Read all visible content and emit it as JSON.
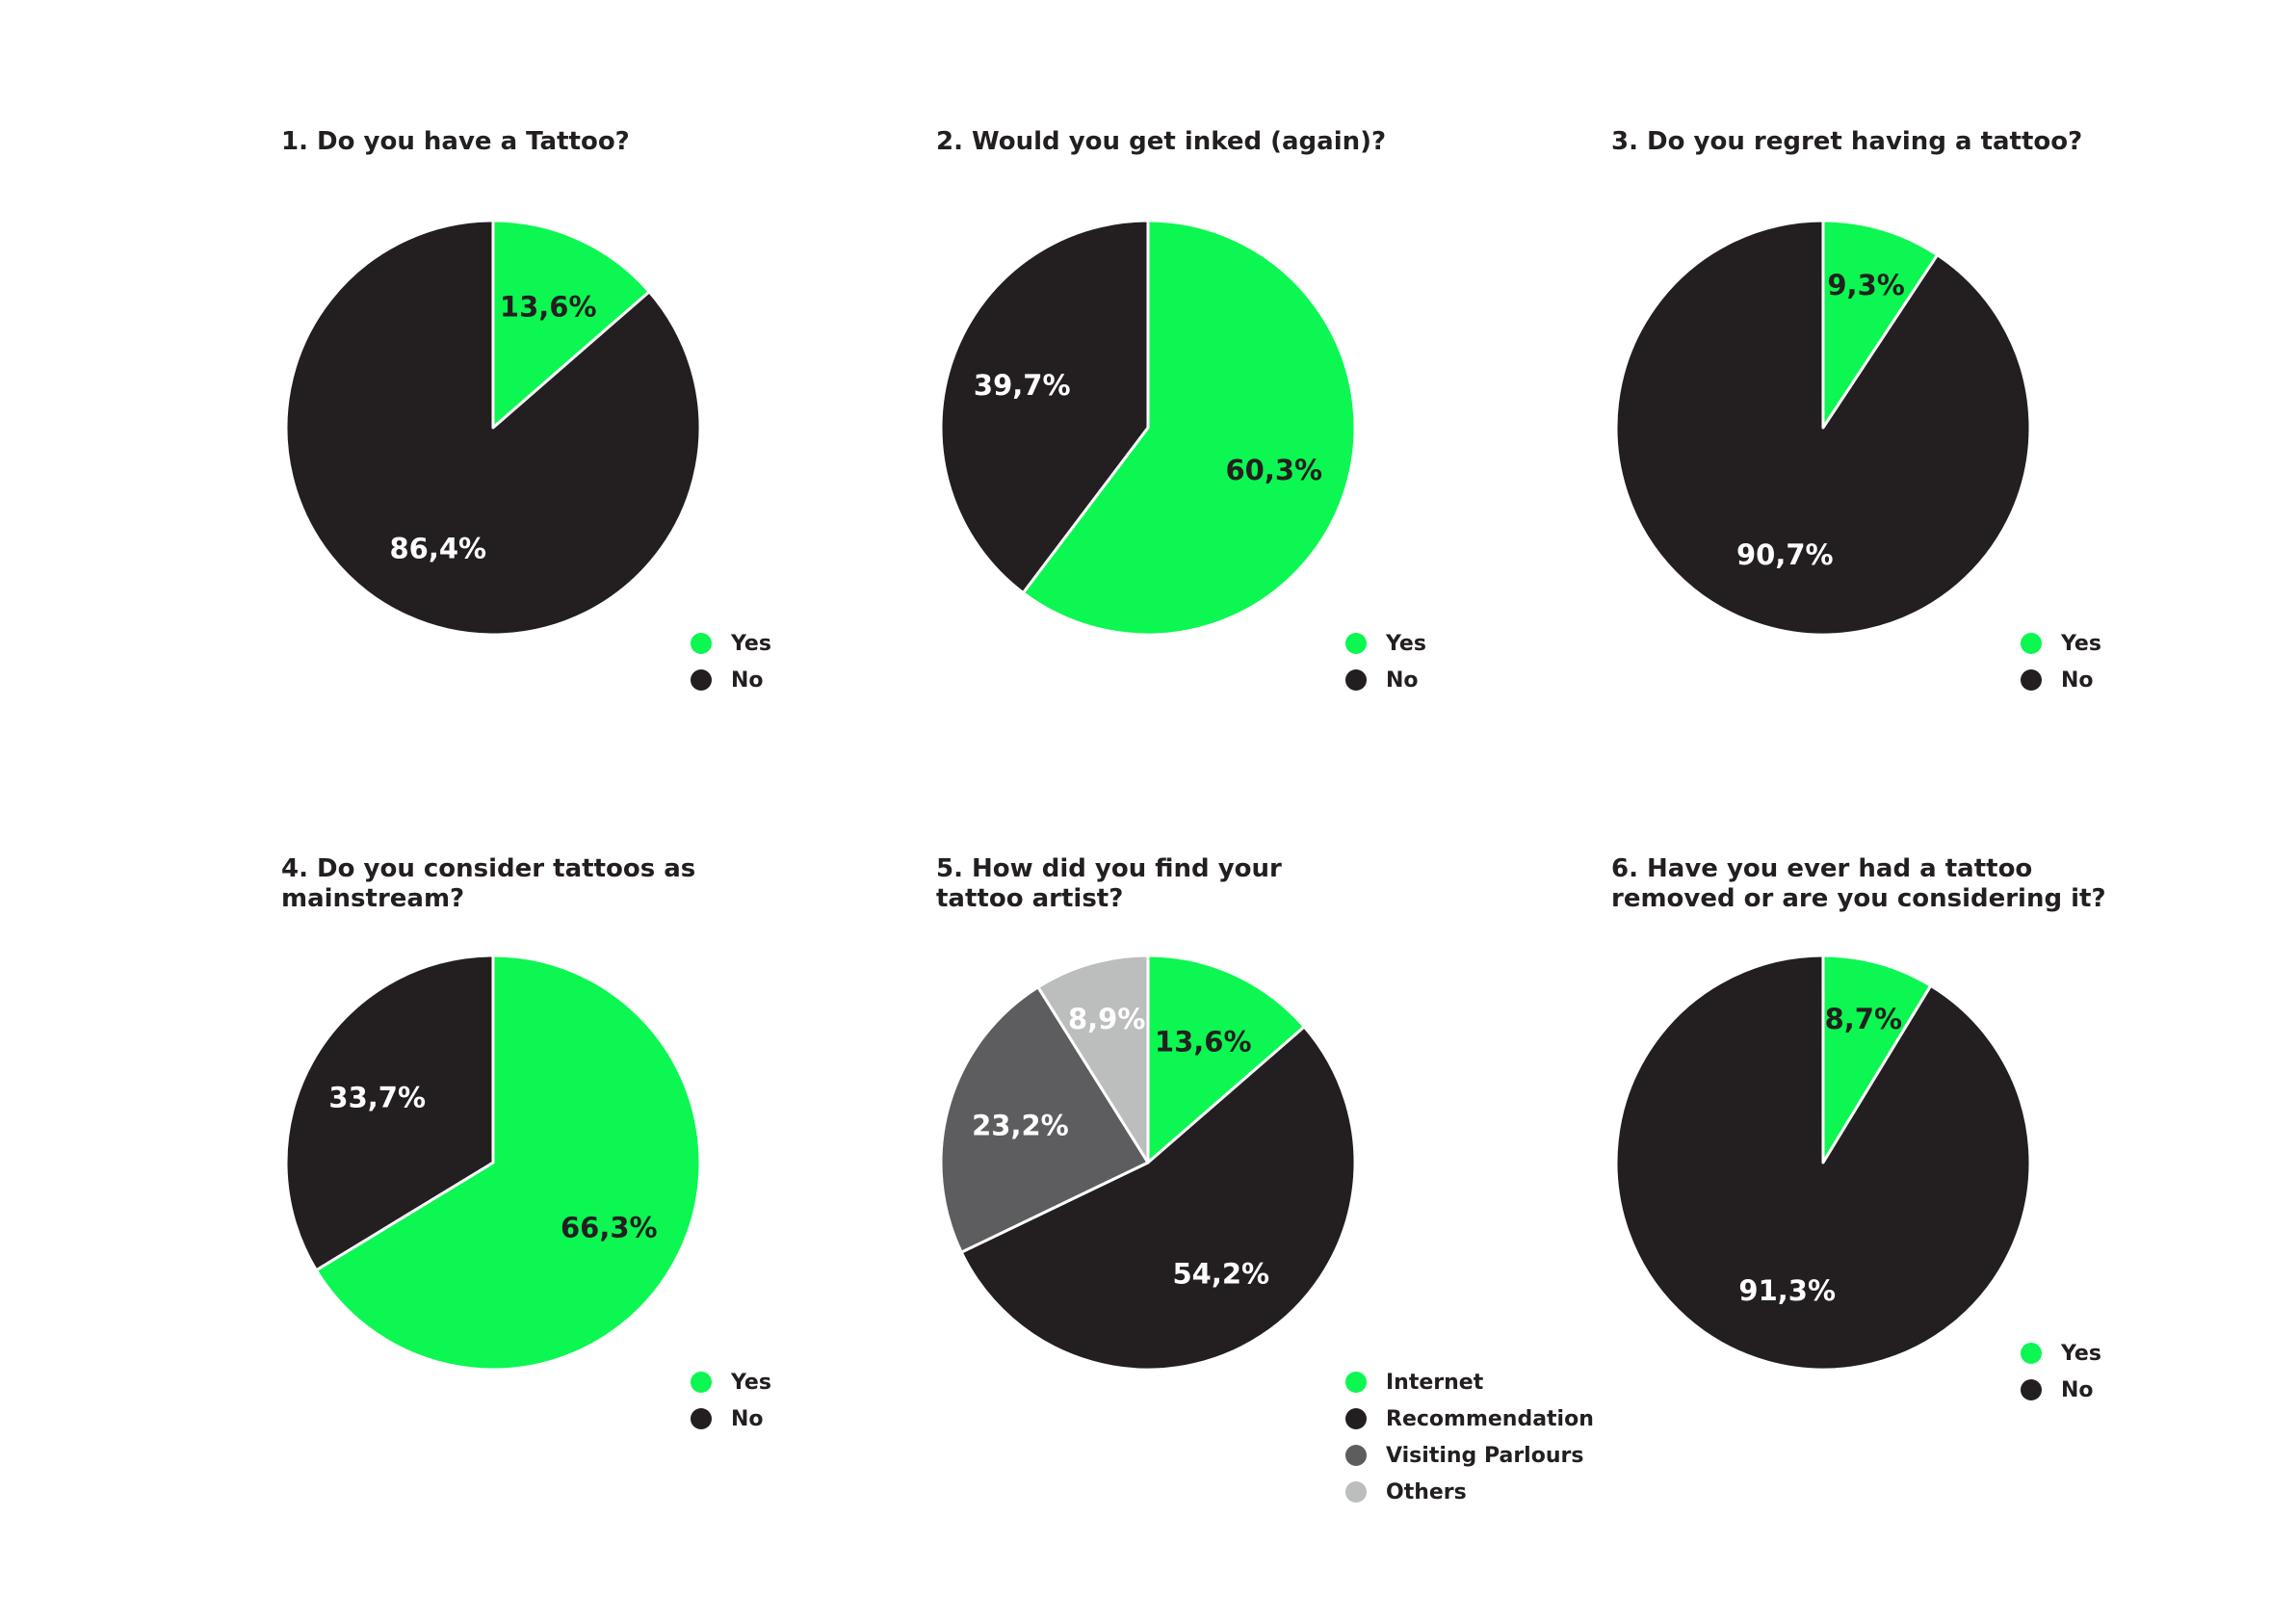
{
  "colors": {
    "green": "#0cf751",
    "dark": "#231f20",
    "gray": "#5d5d5f",
    "lightgray": "#bcbdbd",
    "label_on_light": "#231f20",
    "label_on_dark": "#ffffff"
  },
  "chart_data": [
    {
      "type": "pie",
      "title": "1. Do you have a Tattoo?",
      "slices": [
        {
          "label": "Yes",
          "value": 13.6,
          "display": "13,6%",
          "color": "#0cf751"
        },
        {
          "label": "No",
          "value": 86.4,
          "display": "86,4%",
          "color": "#231f20"
        }
      ]
    },
    {
      "type": "pie",
      "title": "2. Would you get inked (again)?",
      "slices": [
        {
          "label": "Yes",
          "value": 60.3,
          "display": "60,3%",
          "color": "#0cf751"
        },
        {
          "label": "No",
          "value": 39.7,
          "display": "39,7%",
          "color": "#231f20"
        }
      ]
    },
    {
      "type": "pie",
      "title": "3. Do you regret having a tattoo?",
      "slices": [
        {
          "label": "Yes",
          "value": 9.3,
          "display": "9,3%",
          "color": "#0cf751"
        },
        {
          "label": "No",
          "value": 90.7,
          "display": "90,7%",
          "color": "#231f20"
        }
      ]
    },
    {
      "type": "pie",
      "title": "4. Do you consider tattoos as mainstream?",
      "slices": [
        {
          "label": "Yes",
          "value": 66.3,
          "display": "66,3%",
          "color": "#0cf751"
        },
        {
          "label": "No",
          "value": 33.7,
          "display": "33,7%",
          "color": "#231f20"
        }
      ]
    },
    {
      "type": "pie",
      "title": "5. How did you find your tattoo artist?",
      "slices": [
        {
          "label": "Internet",
          "value": 13.6,
          "display": "13,6%",
          "color": "#0cf751"
        },
        {
          "label": "Recommendation",
          "value": 54.2,
          "display": "54,2%",
          "color": "#231f20"
        },
        {
          "label": "Visiting Parlours",
          "value": 23.2,
          "display": "23,2%",
          "color": "#5d5d5f"
        },
        {
          "label": "Others",
          "value": 8.9,
          "display": "8,9%",
          "color": "#bcbdbd"
        }
      ]
    },
    {
      "type": "pie",
      "title": "6. Have you ever had a tattoo removed or are you considering it?",
      "slices": [
        {
          "label": "Yes",
          "value": 8.7,
          "display": "8,7%",
          "color": "#0cf751"
        },
        {
          "label": "No",
          "value": 91.3,
          "display": "91,3%",
          "color": "#231f20"
        }
      ]
    }
  ]
}
